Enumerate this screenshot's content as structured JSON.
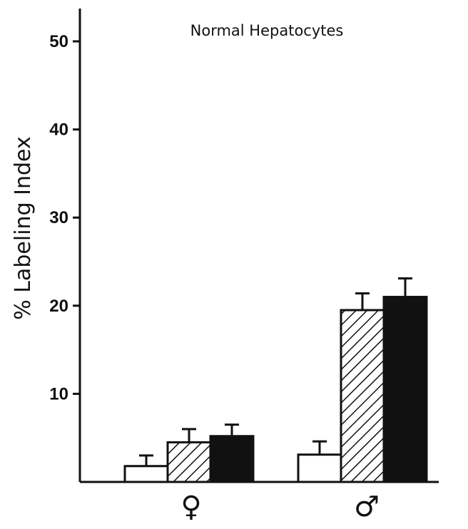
{
  "chart_data": {
    "type": "bar",
    "title": "Normal Hepatocytes",
    "xlabel": "",
    "ylabel": "% Labeling Index",
    "ylim": [
      0,
      55
    ],
    "yticks": [
      10,
      20,
      30,
      40,
      50
    ],
    "ytick_labels": [
      "10",
      "20",
      "30",
      "40",
      "50"
    ],
    "categories": [
      "♀",
      "♂"
    ],
    "grid": false,
    "legend": "none",
    "series": [
      {
        "fill": "white",
        "values": [
          1.8,
          3.1
        ],
        "errors": [
          1.2,
          1.5
        ]
      },
      {
        "fill": "hatched",
        "values": [
          4.5,
          19.5
        ],
        "errors": [
          1.5,
          1.9
        ]
      },
      {
        "fill": "black",
        "values": [
          5.2,
          21.0
        ],
        "errors": [
          1.3,
          2.1
        ]
      }
    ]
  }
}
